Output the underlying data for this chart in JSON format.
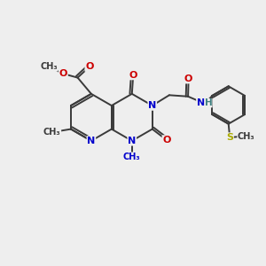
{
  "bg_color": "#eeeeee",
  "bond_color": "#3a3a3a",
  "N_color": "#0000cc",
  "O_color": "#cc0000",
  "S_color": "#aaaa00",
  "H_color": "#408080",
  "C_color": "#3a3a3a",
  "figsize": [
    3.0,
    3.0
  ],
  "dpi": 100,
  "xlim": [
    0,
    10
  ],
  "ylim": [
    0,
    10
  ]
}
